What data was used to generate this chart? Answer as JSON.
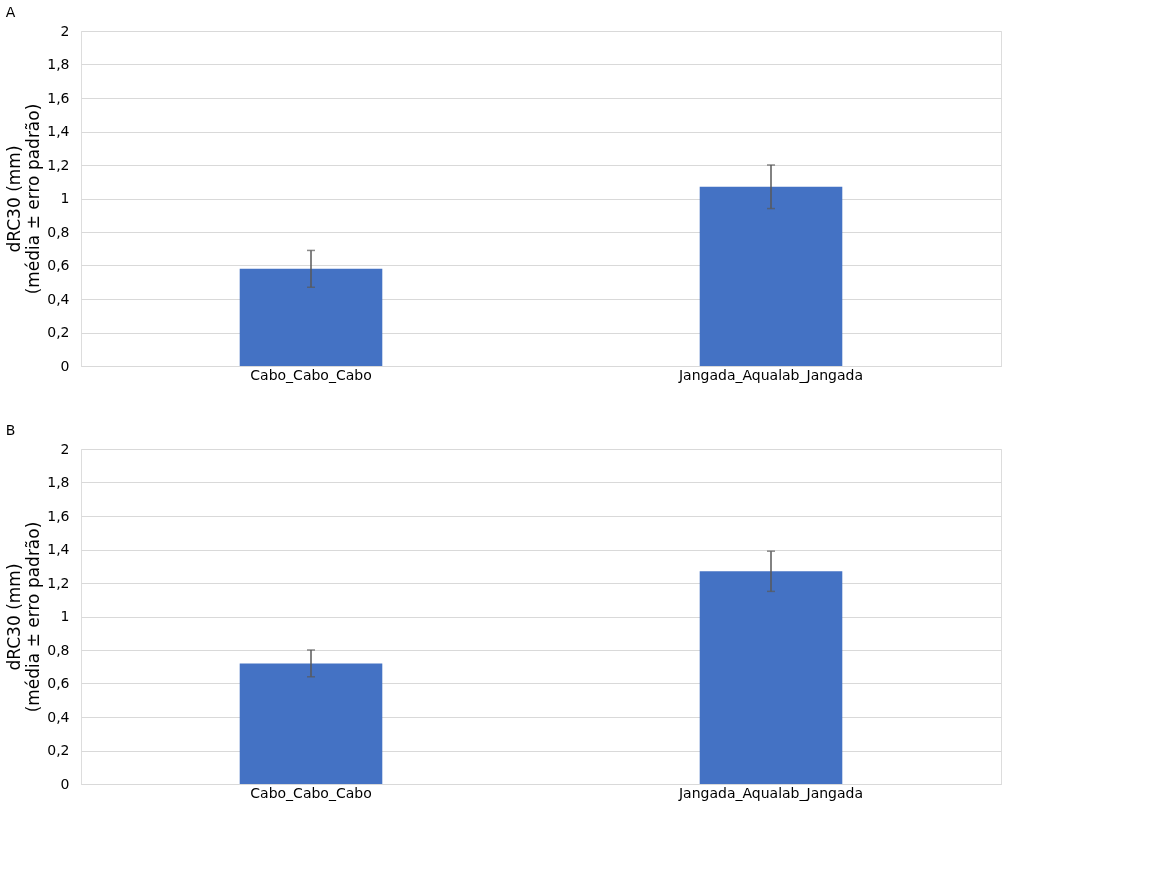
{
  "chart_data": [
    {
      "type": "bar",
      "title": "A",
      "ylabel": "dRC30 (mm)\n(média ± erro padrão)",
      "categories": [
        "Cabo_Cabo_Cabo",
        "Jangada_Aqualab_Jangada"
      ],
      "values": [
        0.58,
        1.07
      ],
      "errors": [
        0.11,
        0.13
      ],
      "color": "#4472c4",
      "ylim": [
        0,
        2
      ],
      "yticks": [
        0,
        {
          "value": 0.2,
          "label": "0,2"
        },
        {
          "value": 0.4,
          "label": "0,4"
        },
        {
          "value": 0.6,
          "label": "0,6"
        },
        {
          "value": 0.8,
          "label": "0,8"
        },
        1,
        {
          "value": 1.2,
          "label": "1,2"
        },
        {
          "value": 1.4,
          "label": "1,4"
        },
        {
          "value": 1.6,
          "label": "1,6"
        },
        {
          "value": 1.8,
          "label": "1,8"
        },
        2
      ],
      "grid": "y"
    },
    {
      "type": "bar",
      "title": "B",
      "ylabel": "dRC30 (mm)\n(média ± erro padrão)",
      "categories": [
        "Cabo_Cabo_Cabo",
        "Jangada_Aqualab_Jangada"
      ],
      "values": [
        0.72,
        1.27
      ],
      "errors": [
        0.08,
        0.12
      ],
      "color": "#4472c4",
      "ylim": [
        0,
        2
      ],
      "yticks": [
        0,
        {
          "value": 0.2,
          "label": "0,2"
        },
        {
          "value": 0.4,
          "label": "0,4"
        },
        {
          "value": 0.6,
          "label": "0,6"
        },
        {
          "value": 0.8,
          "label": "0,8"
        },
        1,
        {
          "value": 1.2,
          "label": "1,2"
        },
        {
          "value": 1.4,
          "label": "1,4"
        },
        {
          "value": 1.6,
          "label": "1,6"
        },
        {
          "value": 1.8,
          "label": "1,8"
        },
        2
      ],
      "grid": "y"
    }
  ]
}
